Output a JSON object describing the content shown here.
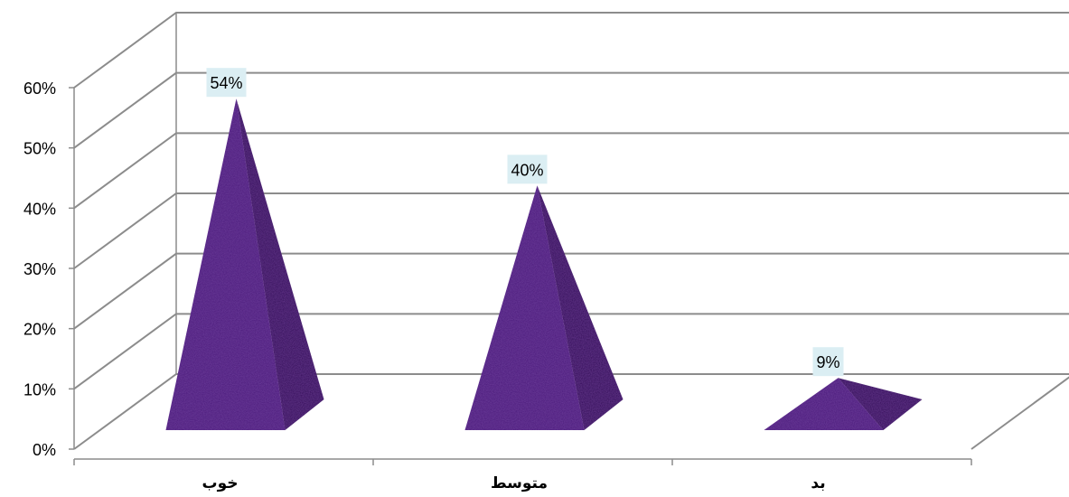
{
  "chart_data": {
    "type": "bar",
    "bar_shape": "3d-pyramid",
    "categories": [
      "خوب",
      "متوسط",
      "بد"
    ],
    "values": [
      54,
      40,
      9
    ],
    "data_labels": [
      "54%",
      "40%",
      "9%"
    ],
    "y_ticks": [
      "0%",
      "10%",
      "20%",
      "30%",
      "40%",
      "50%",
      "60%"
    ],
    "ylim": [
      0,
      60
    ],
    "y_unit": "%",
    "grid": true,
    "legend": "none",
    "title": "",
    "xlabel": "",
    "ylabel": "",
    "colors": {
      "pyramid_front": "#4a1a7a",
      "pyramid_side": "#2f0f55",
      "data_label_bg": "#dbeef3",
      "grid": "#8c8c8c"
    }
  }
}
